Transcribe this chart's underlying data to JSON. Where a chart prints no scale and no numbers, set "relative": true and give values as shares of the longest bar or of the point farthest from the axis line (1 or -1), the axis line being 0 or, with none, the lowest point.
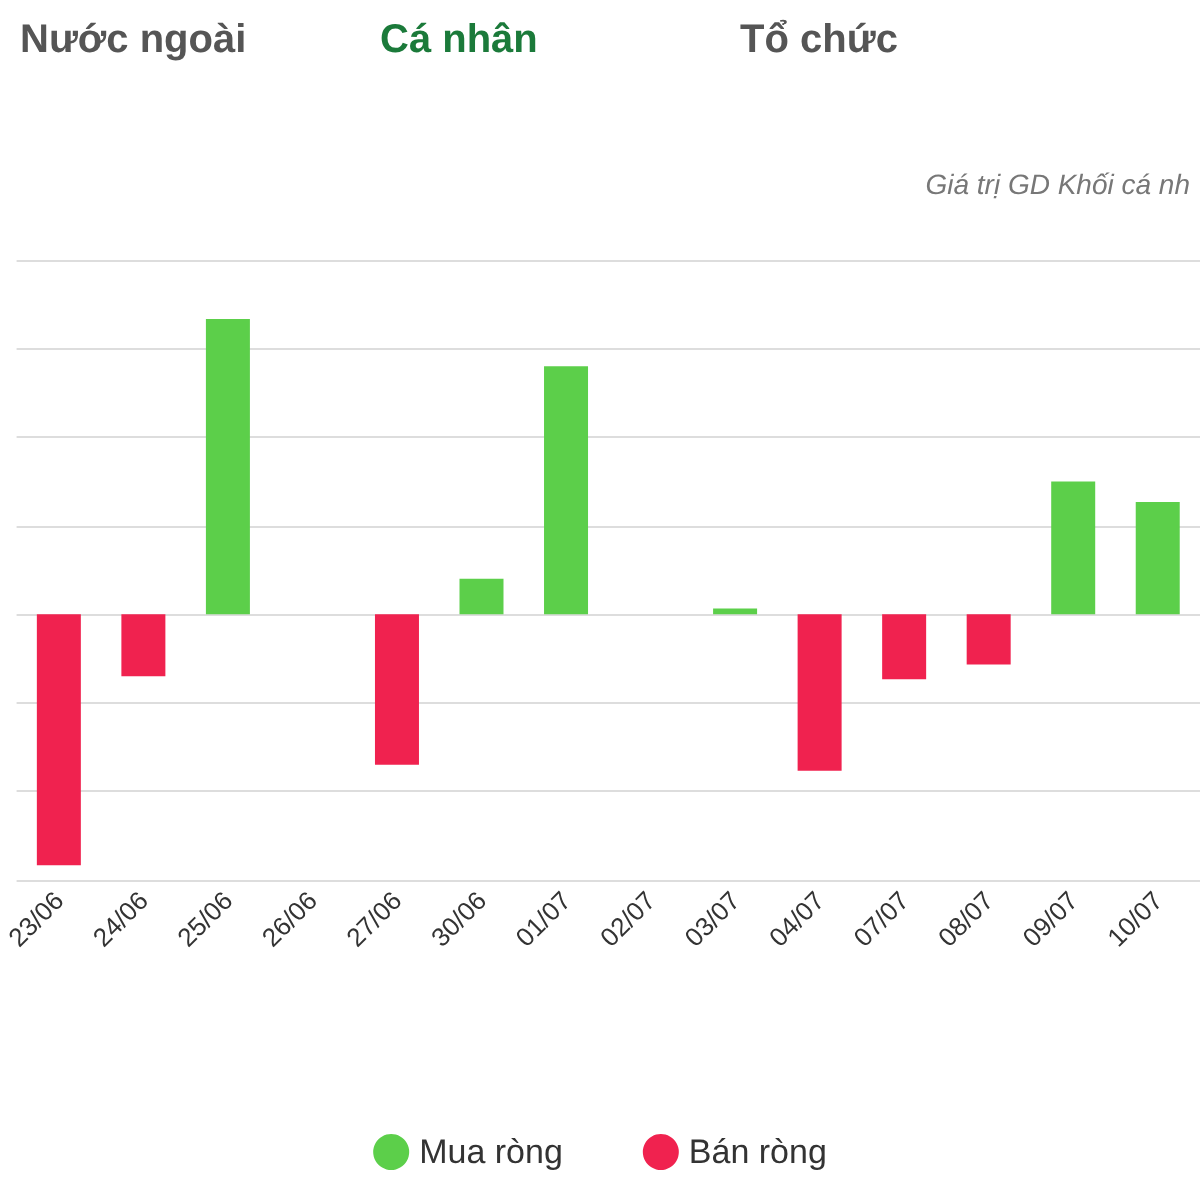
{
  "chart_data": {
    "type": "bar",
    "subtitle": "Giá trị GD Khối cá nh",
    "annotations": [
      "Nước ngoài",
      "Cá nhân",
      "Tổ chức"
    ],
    "categories": [
      "23/06",
      "24/06",
      "25/06",
      "26/06",
      "27/06",
      "30/06",
      "01/07",
      "02/07",
      "03/07",
      "04/07",
      "07/07",
      "08/07",
      "09/07",
      "10/07"
    ],
    "relative": true,
    "stacked": true,
    "grid": "y",
    "legend": "bottom",
    "series": [
      {
        "name": "Mua ròng",
        "color": "#5ccf4a",
        "values": [
          null,
          null,
          1,
          null,
          null,
          0.12,
          0.84,
          null,
          0.02,
          null,
          null,
          null,
          0.45,
          0.38
        ]
      },
      {
        "name": "Bán ròng",
        "color": "#f0224f",
        "values": [
          -0.85,
          -0.21,
          null,
          null,
          -0.51,
          null,
          null,
          null,
          null,
          -0.53,
          -0.22,
          -0.17,
          null,
          null
        ]
      }
    ]
  }
}
